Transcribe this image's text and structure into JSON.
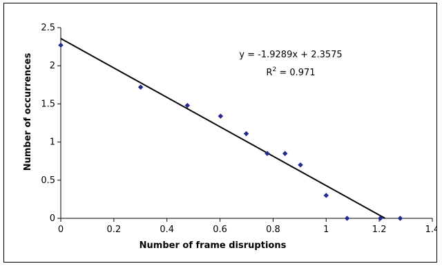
{
  "chart_data": {
    "type": "scatter",
    "xlabel": "Number of frame disruptions",
    "ylabel": "Number of occurrences",
    "xlim": [
      0,
      1.4
    ],
    "ylim": [
      0,
      2.5
    ],
    "xticks": [
      0,
      0.2,
      0.4,
      0.6,
      0.8,
      1,
      1.2,
      1.4
    ],
    "yticks": [
      0,
      0.5,
      1,
      1.5,
      2,
      2.5
    ],
    "x_tick_labels": [
      "0",
      "0.2",
      "0.4",
      "0.6",
      "0.8",
      "1",
      "1.2",
      "1.4"
    ],
    "y_tick_labels": [
      "0",
      "0.5",
      "1",
      "1.5",
      "2",
      "2.5"
    ],
    "grid": false,
    "legend": "none",
    "series": [
      {
        "marker": "diamond",
        "color": "#1f2b8f",
        "points": [
          [
            0,
            2.27
          ],
          [
            0.301,
            1.72
          ],
          [
            0.477,
            1.48
          ],
          [
            0.602,
            1.34
          ],
          [
            0.699,
            1.11
          ],
          [
            0.778,
            0.85
          ],
          [
            0.845,
            0.85
          ],
          [
            0.903,
            0.7
          ],
          [
            1.0,
            0.3
          ],
          [
            1.079,
            0.0
          ],
          [
            1.204,
            0.0
          ],
          [
            1.279,
            0.0
          ]
        ]
      }
    ],
    "trendline": {
      "slope": -1.9289,
      "intercept": 2.3575,
      "color": "#000000",
      "equation_label": "y = -1.9289x + 2.3575",
      "r2_label_prefix": "R",
      "r2_label_sup": "2",
      "r2_label_suffix": " = 0.971"
    }
  }
}
